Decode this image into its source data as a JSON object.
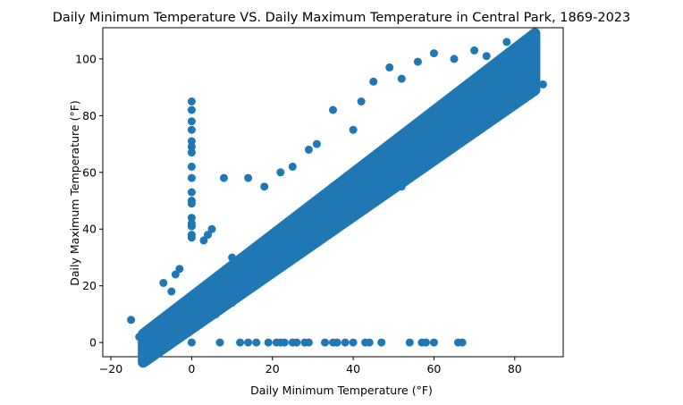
{
  "chart_data": {
    "type": "scatter",
    "title": "Daily Minimum Temperature VS. Daily Maximum Temperature in Central Park, 1869-2023",
    "xlabel": "Daily Minimum Temperature (°F)",
    "ylabel": "Daily Maximum Temperature (°F)",
    "xlim": [
      -22,
      92
    ],
    "ylim": [
      -5,
      111
    ],
    "xticks": [
      -20,
      0,
      20,
      40,
      60,
      80
    ],
    "yticks": [
      0,
      20,
      40,
      60,
      80,
      100
    ],
    "grid": false,
    "marker_color": "#1f77b4",
    "band": {
      "x_start": -12,
      "x_end": 85,
      "lower_offset_start": 5,
      "lower_offset_end": 4,
      "upper_offset_start": 15,
      "upper_offset_end": 24
    },
    "points": [
      [
        -15,
        8
      ],
      [
        -13,
        2
      ],
      [
        -8,
        8
      ],
      [
        -7,
        21
      ],
      [
        -6,
        8
      ],
      [
        -6,
        6
      ],
      [
        -6,
        4
      ],
      [
        -5,
        18
      ],
      [
        -4,
        24
      ],
      [
        -3,
        26
      ],
      [
        0,
        85
      ],
      [
        0,
        82
      ],
      [
        0,
        78
      ],
      [
        0,
        75
      ],
      [
        0,
        71
      ],
      [
        0,
        69
      ],
      [
        0,
        67
      ],
      [
        0,
        62
      ],
      [
        0,
        58
      ],
      [
        0,
        53
      ],
      [
        0,
        50
      ],
      [
        0,
        49
      ],
      [
        0,
        44
      ],
      [
        0,
        42
      ],
      [
        0,
        41
      ],
      [
        0,
        38
      ],
      [
        0,
        37
      ],
      [
        2,
        8
      ],
      [
        3,
        36
      ],
      [
        4,
        38
      ],
      [
        5,
        40
      ],
      [
        8,
        58
      ],
      [
        10,
        30
      ],
      [
        14,
        58
      ],
      [
        18,
        55
      ],
      [
        22,
        60
      ],
      [
        25,
        62
      ],
      [
        29,
        68
      ],
      [
        31,
        70
      ],
      [
        35,
        82
      ],
      [
        40,
        75
      ],
      [
        42,
        85
      ],
      [
        45,
        92
      ],
      [
        49,
        97
      ],
      [
        52,
        93
      ],
      [
        56,
        99
      ],
      [
        60,
        102
      ],
      [
        65,
        100
      ],
      [
        70,
        103
      ],
      [
        73,
        101
      ],
      [
        78,
        106
      ],
      [
        80,
        104
      ],
      [
        83,
        104
      ],
      [
        85,
        93
      ],
      [
        87,
        91
      ],
      [
        75,
        82
      ],
      [
        70,
        78
      ],
      [
        64,
        72
      ],
      [
        58,
        62
      ],
      [
        52,
        55
      ],
      [
        46,
        50
      ],
      [
        40,
        44
      ],
      [
        34,
        39
      ],
      [
        28,
        34
      ],
      [
        22,
        27
      ],
      [
        16,
        21
      ],
      [
        10,
        14
      ],
      [
        6,
        10
      ],
      [
        0,
        0
      ],
      [
        7,
        0
      ],
      [
        12,
        0
      ],
      [
        14,
        0
      ],
      [
        16,
        0
      ],
      [
        19,
        0
      ],
      [
        21,
        0
      ],
      [
        22,
        0
      ],
      [
        23,
        0
      ],
      [
        25,
        0
      ],
      [
        26,
        0
      ],
      [
        28,
        0
      ],
      [
        29,
        0
      ],
      [
        33,
        0
      ],
      [
        35,
        0
      ],
      [
        36,
        0
      ],
      [
        38,
        0
      ],
      [
        40,
        0
      ],
      [
        43,
        0
      ],
      [
        44,
        0
      ],
      [
        47,
        0
      ],
      [
        54,
        0
      ],
      [
        57,
        0
      ],
      [
        58,
        0
      ],
      [
        60,
        0
      ],
      [
        66,
        0
      ],
      [
        67,
        0
      ]
    ]
  }
}
